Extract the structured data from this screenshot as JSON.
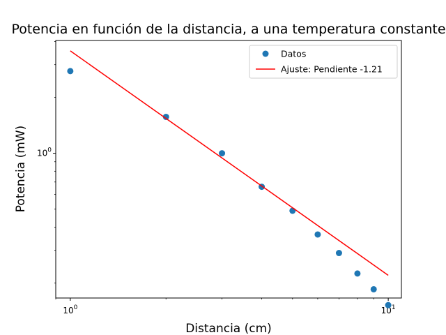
{
  "chart_data": {
    "type": "scatter",
    "title": "Potencia en función de la distancia, a una temperatura constante",
    "xlabel": "Distancia (cm)",
    "ylabel": "Potencia (mW)",
    "xscale": "log",
    "yscale": "log",
    "xlim": [
      0.9,
      11
    ],
    "ylim": [
      0.166,
      4.05
    ],
    "grid": false,
    "legend_position": "top-right",
    "x_ticks": [
      {
        "value": 1,
        "label": "10^0"
      },
      {
        "value": 10,
        "label": "10^1"
      }
    ],
    "y_ticks": [
      {
        "value": 1,
        "label": "10^0"
      }
    ],
    "series": [
      {
        "name": "Datos",
        "kind": "scatter",
        "color": "#1f77b4",
        "x": [
          1,
          2,
          3,
          4,
          5,
          6,
          7,
          8,
          9,
          10
        ],
        "y": [
          2.77,
          1.57,
          1.0,
          0.66,
          0.49,
          0.365,
          0.29,
          0.225,
          0.185,
          0.152
        ]
      },
      {
        "name": "Ajuste: Pendiente -1.21",
        "kind": "line",
        "color": "#ff0000",
        "x": [
          1,
          10
        ],
        "y": [
          3.56,
          0.22
        ]
      }
    ]
  }
}
